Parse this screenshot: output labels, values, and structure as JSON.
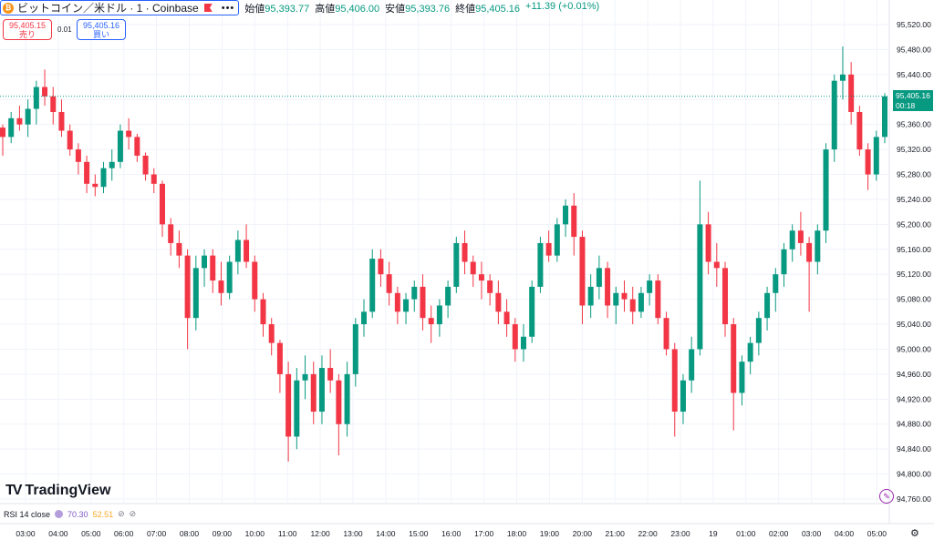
{
  "header": {
    "symbol_title": "ビットコイン／米ドル · 1 · Coinbase",
    "ohlc": [
      {
        "label": "始値",
        "value": "95,393.77"
      },
      {
        "label": "高値",
        "value": "95,406.00"
      },
      {
        "label": "安値",
        "value": "95,393.76"
      },
      {
        "label": "終値",
        "value": "95,405.16"
      }
    ],
    "change": "+11.39 (+0.01%)",
    "icons": [
      "bitcoin-logo",
      "flag-icon",
      "more-icon"
    ]
  },
  "trade": {
    "sell_price": "95,405.15",
    "sell_label": "売り",
    "spread": "0.01",
    "buy_price": "95,405.16",
    "buy_label": "買い"
  },
  "logo": {
    "text": "TradingView"
  },
  "rsi": {
    "label": "RSI 14 close",
    "value1": "70.30",
    "value2": "52.51"
  },
  "current_price": {
    "value": "95,405.16",
    "countdown": "00:18"
  },
  "colors": {
    "up": "#089981",
    "down": "#f23645",
    "accent": "#2962ff",
    "rsi": "#7e57c2"
  },
  "chart_data": {
    "type": "candlestick",
    "title": "",
    "y_ticks": [
      "95,520.00",
      "95,480.00",
      "95,440.00",
      "95,400.00",
      "95,360.00",
      "95,320.00",
      "95,280.00",
      "95,240.00",
      "95,200.00",
      "95,160.00",
      "95,120.00",
      "95,080.00",
      "95,040.00",
      "95,000.00",
      "94,960.00",
      "94,920.00",
      "94,880.00",
      "94,840.00",
      "94,800.00",
      "94,760.00"
    ],
    "x_ticks": [
      "03:00",
      "04:00",
      "05:00",
      "06:00",
      "07:00",
      "08:00",
      "09:00",
      "10:00",
      "11:00",
      "12:00",
      "13:00",
      "14:00",
      "15:00",
      "16:00",
      "17:00",
      "18:00",
      "19:00",
      "20:00",
      "21:00",
      "22:00",
      "23:00",
      "19",
      "01:00",
      "02:00",
      "03:00",
      "04:00",
      "05:00"
    ],
    "ylim": [
      94750,
      95530
    ],
    "grid": true,
    "current_price": 95405.16,
    "series": [
      {
        "values": [
          [
            95355,
            95360,
            95310,
            95340
          ],
          [
            95340,
            95380,
            95330,
            95370
          ],
          [
            95370,
            95390,
            95350,
            95360
          ],
          [
            95360,
            95400,
            95340,
            95385
          ],
          [
            95385,
            95430,
            95360,
            95420
          ],
          [
            95420,
            95448,
            95390,
            95405
          ],
          [
            95405,
            95420,
            95360,
            95380
          ],
          [
            95380,
            95400,
            95340,
            95350
          ],
          [
            95350,
            95360,
            95310,
            95320
          ],
          [
            95320,
            95330,
            95280,
            95300
          ],
          [
            95300,
            95310,
            95250,
            95265
          ],
          [
            95265,
            95280,
            95245,
            95260
          ],
          [
            95260,
            95300,
            95250,
            95290
          ],
          [
            95290,
            95320,
            95270,
            95300
          ],
          [
            95300,
            95360,
            95290,
            95350
          ],
          [
            95350,
            95370,
            95320,
            95340
          ],
          [
            95340,
            95345,
            95300,
            95310
          ],
          [
            95310,
            95315,
            95270,
            95280
          ],
          [
            95280,
            95290,
            95250,
            95265
          ],
          [
            95265,
            95270,
            95180,
            95200
          ],
          [
            95200,
            95210,
            95150,
            95170
          ],
          [
            95170,
            95190,
            95130,
            95150
          ],
          [
            95150,
            95160,
            95000,
            95050
          ],
          [
            95050,
            95150,
            95030,
            95130
          ],
          [
            95130,
            95160,
            95100,
            95150
          ],
          [
            95150,
            95160,
            95090,
            95110
          ],
          [
            95110,
            95140,
            95070,
            95090
          ],
          [
            95090,
            95150,
            95080,
            95140
          ],
          [
            95140,
            95190,
            95120,
            95175
          ],
          [
            95175,
            95200,
            95130,
            95140
          ],
          [
            95140,
            95150,
            95060,
            95080
          ],
          [
            95080,
            95090,
            95020,
            95040
          ],
          [
            95040,
            95050,
            94990,
            95010
          ],
          [
            95010,
            95015,
            94930,
            94960
          ],
          [
            94960,
            94980,
            94820,
            94860
          ],
          [
            94860,
            94970,
            94840,
            94950
          ],
          [
            94950,
            94990,
            94920,
            94960
          ],
          [
            94960,
            94980,
            94880,
            94900
          ],
          [
            94900,
            94990,
            94880,
            94970
          ],
          [
            94970,
            95000,
            94930,
            94950
          ],
          [
            94950,
            94960,
            94830,
            94880
          ],
          [
            94880,
            94980,
            94860,
            94960
          ],
          [
            94960,
            95050,
            94940,
            95040
          ],
          [
            95040,
            95080,
            95020,
            95060
          ],
          [
            95060,
            95160,
            95050,
            95145
          ],
          [
            95145,
            95160,
            95100,
            95120
          ],
          [
            95120,
            95140,
            95070,
            95090
          ],
          [
            95090,
            95100,
            95040,
            95060
          ],
          [
            95060,
            95090,
            95040,
            95080
          ],
          [
            95080,
            95110,
            95060,
            95100
          ],
          [
            95100,
            95120,
            95030,
            95050
          ],
          [
            95050,
            95070,
            95010,
            95040
          ],
          [
            95040,
            95080,
            95020,
            95070
          ],
          [
            95070,
            95110,
            95050,
            95100
          ],
          [
            95100,
            95180,
            95090,
            95170
          ],
          [
            95170,
            95190,
            95120,
            95140
          ],
          [
            95140,
            95150,
            95100,
            95120
          ],
          [
            95120,
            95140,
            95080,
            95110
          ],
          [
            95110,
            95120,
            95070,
            95090
          ],
          [
            95090,
            95110,
            95040,
            95060
          ],
          [
            95060,
            95080,
            95020,
            95040
          ],
          [
            95040,
            95050,
            94980,
            95000
          ],
          [
            95000,
            95040,
            94980,
            95020
          ],
          [
            95020,
            95110,
            95010,
            95100
          ],
          [
            95100,
            95180,
            95090,
            95170
          ],
          [
            95170,
            95190,
            95140,
            95150
          ],
          [
            95150,
            95210,
            95140,
            95200
          ],
          [
            95200,
            95240,
            95180,
            95230
          ],
          [
            95230,
            95250,
            95150,
            95180
          ],
          [
            95180,
            95190,
            95040,
            95070
          ],
          [
            95070,
            95120,
            95050,
            95100
          ],
          [
            95100,
            95150,
            95080,
            95130
          ],
          [
            95130,
            95140,
            95050,
            95070
          ],
          [
            95070,
            95100,
            95040,
            95090
          ],
          [
            95090,
            95110,
            95060,
            95080
          ],
          [
            95080,
            95100,
            95040,
            95060
          ],
          [
            95060,
            95100,
            95050,
            95090
          ],
          [
            95090,
            95120,
            95070,
            95110
          ],
          [
            95110,
            95120,
            95040,
            95050
          ],
          [
            95050,
            95060,
            94990,
            95000
          ],
          [
            95000,
            95010,
            94860,
            94900
          ],
          [
            94900,
            94960,
            94880,
            94950
          ],
          [
            94950,
            95020,
            94930,
            95000
          ],
          [
            95000,
            95270,
            94990,
            95200
          ],
          [
            95200,
            95220,
            95120,
            95140
          ],
          [
            95140,
            95170,
            95100,
            95130
          ],
          [
            95130,
            95140,
            95020,
            95040
          ],
          [
            95040,
            95050,
            94870,
            94930
          ],
          [
            94930,
            94990,
            94910,
            94980
          ],
          [
            94980,
            95020,
            94960,
            95010
          ],
          [
            95010,
            95060,
            94990,
            95050
          ],
          [
            95050,
            95100,
            95030,
            95090
          ],
          [
            95090,
            95130,
            95060,
            95120
          ],
          [
            95120,
            95170,
            95100,
            95160
          ],
          [
            95160,
            95200,
            95140,
            95190
          ],
          [
            95190,
            95220,
            95150,
            95170
          ],
          [
            95170,
            95180,
            95060,
            95140
          ],
          [
            95140,
            95200,
            95120,
            95190
          ],
          [
            95190,
            95330,
            95170,
            95320
          ],
          [
            95320,
            95440,
            95300,
            95430
          ],
          [
            95430,
            95485,
            95400,
            95440
          ],
          [
            95440,
            95460,
            95360,
            95380
          ],
          [
            95380,
            95390,
            95310,
            95320
          ],
          [
            95320,
            95330,
            95255,
            95280
          ],
          [
            95280,
            95350,
            95270,
            95340
          ],
          [
            95340,
            95410,
            95330,
            95405
          ]
        ]
      }
    ]
  }
}
